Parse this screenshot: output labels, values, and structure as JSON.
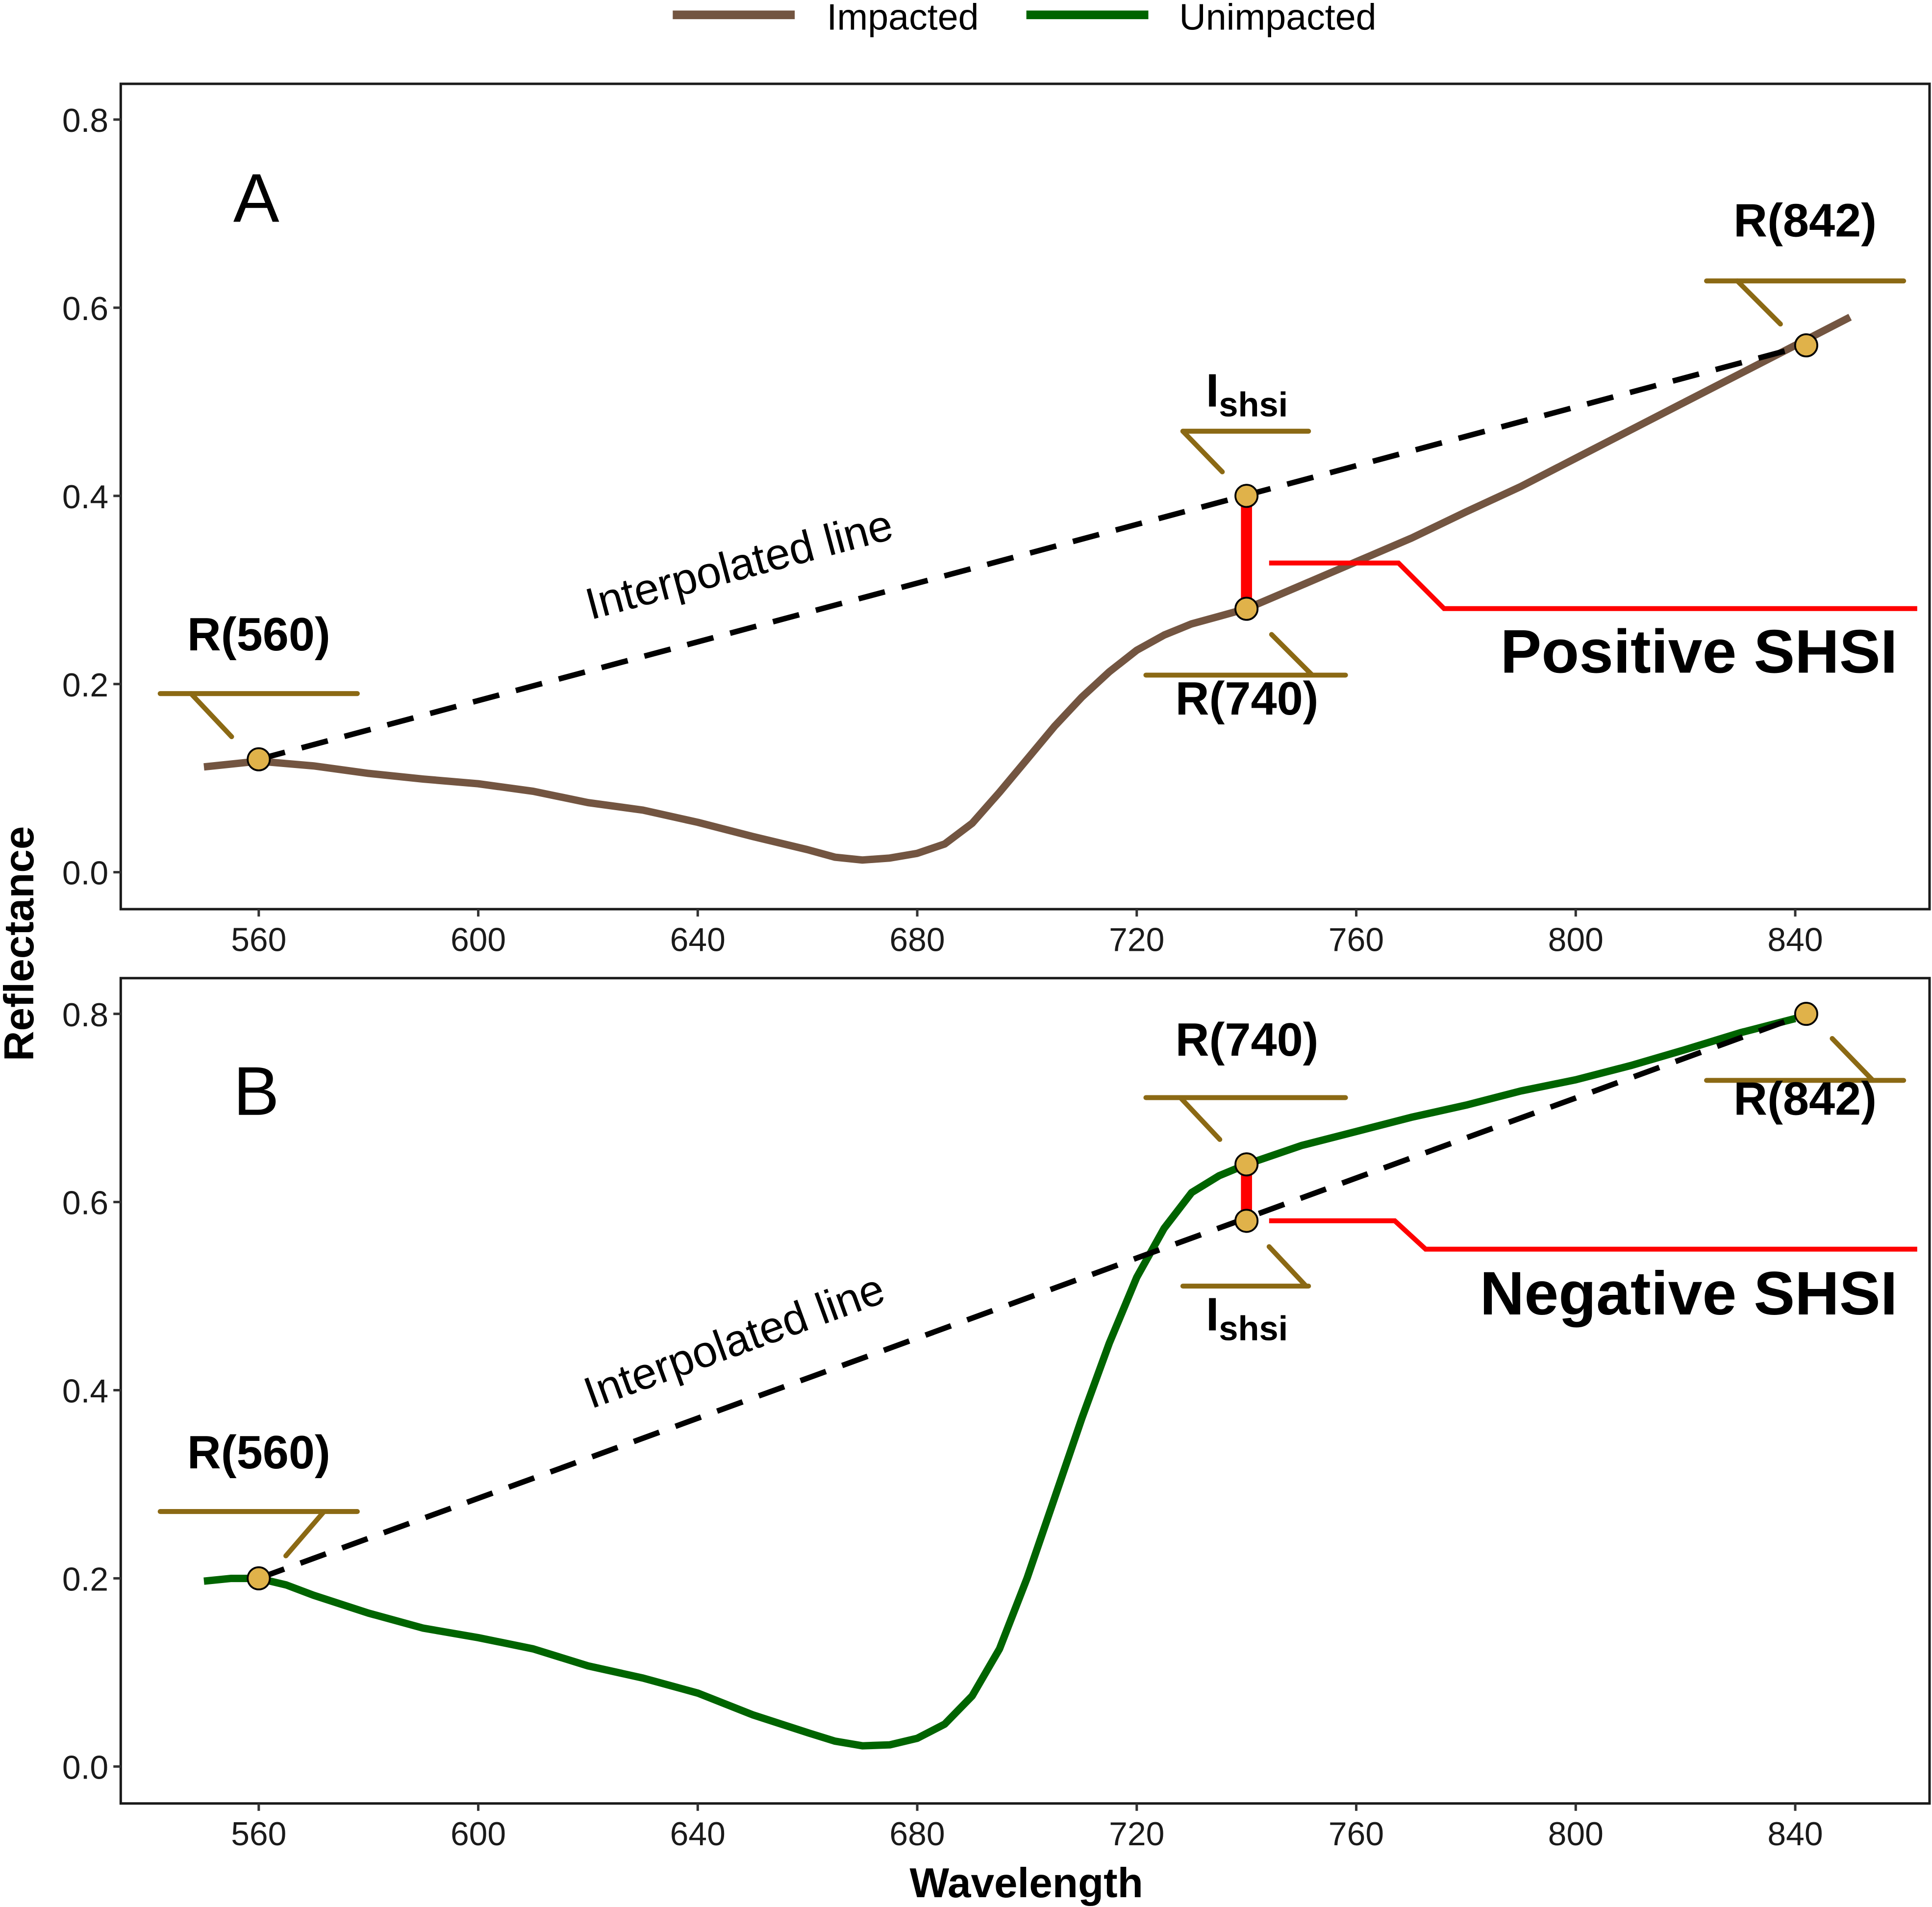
{
  "colors": {
    "impacted": "#735541",
    "unimpacted": "#006400",
    "leader": "#8b6914",
    "point": "#e0b24a",
    "highlight": "#ff0000"
  },
  "legend": {
    "items": [
      {
        "label": "Impacted"
      },
      {
        "label": "Unimpacted"
      }
    ]
  },
  "axes": {
    "ylabel": "Reflectance",
    "xlabel": "Wavelength"
  },
  "chart_data": [
    {
      "type": "line",
      "panel": "A",
      "xlim": [
        538,
        862
      ],
      "ylim": [
        -0.04,
        0.84
      ],
      "xticks": [
        560,
        600,
        640,
        680,
        720,
        760,
        800,
        840
      ],
      "yticks": [
        "0.0",
        "0.2",
        "0.4",
        "0.6",
        "0.8"
      ],
      "series": [
        {
          "name": "Impacted",
          "x": [
            550,
            560,
            570,
            580,
            590,
            600,
            610,
            620,
            630,
            640,
            650,
            660,
            665,
            670,
            675,
            680,
            685,
            690,
            695,
            700,
            705,
            710,
            715,
            720,
            725,
            730,
            735,
            740,
            750,
            760,
            770,
            780,
            790,
            800,
            810,
            820,
            830,
            840,
            850
          ],
          "y": [
            0.112,
            0.118,
            0.113,
            0.105,
            0.099,
            0.094,
            0.086,
            0.074,
            0.066,
            0.053,
            0.038,
            0.024,
            0.016,
            0.013,
            0.015,
            0.02,
            0.03,
            0.052,
            0.085,
            0.12,
            0.155,
            0.186,
            0.213,
            0.236,
            0.252,
            0.264,
            0.272,
            0.28,
            0.305,
            0.33,
            0.355,
            0.383,
            0.41,
            0.44,
            0.47,
            0.5,
            0.53,
            0.56,
            0.59
          ]
        }
      ],
      "points": [
        {
          "x": 560,
          "y": 0.12,
          "label": "R(560)"
        },
        {
          "x": 740,
          "y": 0.4,
          "label": "Ishsi"
        },
        {
          "x": 740,
          "y": 0.28,
          "label": "R(740)"
        },
        {
          "x": 842,
          "y": 0.56,
          "label": "R(842)"
        }
      ],
      "annotations": {
        "panel_label": "A",
        "interp": "Interpolated line",
        "result": "Positive SHSI",
        "ishsi_main": "I",
        "ishsi_sub": "shsi"
      }
    },
    {
      "type": "line",
      "panel": "B",
      "xlim": [
        538,
        862
      ],
      "ylim": [
        -0.04,
        0.84
      ],
      "xticks": [
        560,
        600,
        640,
        680,
        720,
        760,
        800,
        840
      ],
      "yticks": [
        "0.0",
        "0.2",
        "0.4",
        "0.6",
        "0.8"
      ],
      "series": [
        {
          "name": "Unimpacted",
          "x": [
            550,
            555,
            560,
            565,
            570,
            580,
            590,
            600,
            610,
            620,
            630,
            640,
            650,
            660,
            665,
            670,
            675,
            680,
            685,
            690,
            695,
            700,
            705,
            710,
            715,
            720,
            725,
            730,
            735,
            740,
            750,
            760,
            770,
            780,
            790,
            800,
            810,
            820,
            830,
            840
          ],
          "y": [
            0.197,
            0.2,
            0.2,
            0.193,
            0.182,
            0.163,
            0.147,
            0.137,
            0.125,
            0.107,
            0.094,
            0.078,
            0.055,
            0.036,
            0.027,
            0.022,
            0.023,
            0.03,
            0.045,
            0.075,
            0.125,
            0.2,
            0.285,
            0.37,
            0.45,
            0.52,
            0.572,
            0.61,
            0.628,
            0.64,
            0.66,
            0.675,
            0.69,
            0.703,
            0.718,
            0.73,
            0.745,
            0.762,
            0.78,
            0.795
          ]
        }
      ],
      "points": [
        {
          "x": 560,
          "y": 0.2,
          "label": "R(560)"
        },
        {
          "x": 740,
          "y": 0.64,
          "label": "R(740)"
        },
        {
          "x": 740,
          "y": 0.58,
          "label": "Ishsi"
        },
        {
          "x": 842,
          "y": 0.8,
          "label": "R(842)"
        }
      ],
      "annotations": {
        "panel_label": "B",
        "interp": "Interpolated line",
        "result": "Negative SHSI",
        "ishsi_main": "I",
        "ishsi_sub": "shsi"
      }
    }
  ]
}
